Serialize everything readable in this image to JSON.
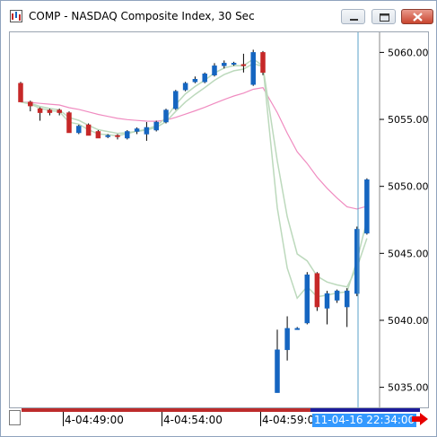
{
  "window": {
    "title": "COMP - NASDAQ Composite Index, 30 Sec",
    "icons": [
      "chart-window-icon",
      "minimize-icon",
      "maximize-icon",
      "close-icon"
    ]
  },
  "chart_data": {
    "type": "candlestick",
    "title": "COMP - NASDAQ Composite Index, 30 Sec",
    "ylim": [
      5033.5,
      5061.5
    ],
    "y_ticks": [
      5060.0,
      5055.0,
      5050.0,
      5045.0,
      5040.0,
      5035.0
    ],
    "y_tick_labels": [
      "5060.00",
      "5055.00",
      "5050.00",
      "5045.00",
      "5040.00",
      "5035.00"
    ],
    "x_tick_labels": [
      "4-04:49:00",
      "4-04:54:00",
      "4-04:59:00"
    ],
    "cursor_label": "11-04-16 22:34:00",
    "colors": {
      "up": "#1565c0",
      "down": "#c62828",
      "pink_ma": "#f08bc0",
      "green_ma": "#bcd9bc",
      "cursor": "#5aa0c8"
    },
    "candles": [
      {
        "o": 5057.7,
        "h": 5057.8,
        "l": 5056.3,
        "c": 5056.3
      },
      {
        "o": 5056.3,
        "h": 5056.4,
        "l": 5055.6,
        "c": 5056.0
      },
      {
        "o": 5055.8,
        "h": 5055.9,
        "l": 5054.9,
        "c": 5055.5
      },
      {
        "o": 5055.7,
        "h": 5055.8,
        "l": 5055.3,
        "c": 5055.5
      },
      {
        "o": 5055.7,
        "h": 5055.8,
        "l": 5055.3,
        "c": 5055.5
      },
      {
        "o": 5055.5,
        "h": 5055.6,
        "l": 5054.0,
        "c": 5054.0
      },
      {
        "o": 5054.0,
        "h": 5054.6,
        "l": 5053.9,
        "c": 5054.5
      },
      {
        "o": 5054.6,
        "h": 5054.7,
        "l": 5053.8,
        "c": 5053.8
      },
      {
        "o": 5054.1,
        "h": 5054.2,
        "l": 5053.6,
        "c": 5053.6
      },
      {
        "o": 5053.8,
        "h": 5053.9,
        "l": 5053.6,
        "c": 5053.8
      },
      {
        "o": 5053.8,
        "h": 5053.9,
        "l": 5053.5,
        "c": 5053.7
      },
      {
        "o": 5053.6,
        "h": 5054.2,
        "l": 5053.5,
        "c": 5054.1
      },
      {
        "o": 5054.1,
        "h": 5054.4,
        "l": 5053.9,
        "c": 5054.3
      },
      {
        "o": 5053.9,
        "h": 5054.8,
        "l": 5053.4,
        "c": 5054.4
      },
      {
        "o": 5054.2,
        "h": 5054.9,
        "l": 5054.1,
        "c": 5054.8
      },
      {
        "o": 5054.8,
        "h": 5055.8,
        "l": 5054.7,
        "c": 5055.7
      },
      {
        "o": 5055.8,
        "h": 5057.2,
        "l": 5055.7,
        "c": 5057.1
      },
      {
        "o": 5057.2,
        "h": 5057.8,
        "l": 5057.1,
        "c": 5057.7
      },
      {
        "o": 5057.8,
        "h": 5058.2,
        "l": 5057.7,
        "c": 5058.0
      },
      {
        "o": 5057.8,
        "h": 5058.5,
        "l": 5057.7,
        "c": 5058.4
      },
      {
        "o": 5058.3,
        "h": 5059.2,
        "l": 5058.2,
        "c": 5059.0
      },
      {
        "o": 5059.0,
        "h": 5059.4,
        "l": 5058.8,
        "c": 5059.2
      },
      {
        "o": 5059.1,
        "h": 5059.3,
        "l": 5059.0,
        "c": 5059.2
      },
      {
        "o": 5059.1,
        "h": 5059.9,
        "l": 5058.5,
        "c": 5059.0
      },
      {
        "o": 5057.6,
        "h": 5060.2,
        "l": 5057.5,
        "c": 5060.0
      },
      {
        "o": 5060.0,
        "h": 5060.1,
        "l": 5058.3,
        "c": 5058.5
      },
      {
        "o": 5034.6,
        "h": 5039.3,
        "l": 5034.6,
        "c": 5037.8
      },
      {
        "o": 5037.8,
        "h": 5040.3,
        "l": 5037.0,
        "c": 5039.4
      },
      {
        "o": 5039.4,
        "h": 5039.5,
        "l": 5039.3,
        "c": 5039.4
      },
      {
        "o": 5039.8,
        "h": 5043.6,
        "l": 5039.7,
        "c": 5043.4
      },
      {
        "o": 5043.5,
        "h": 5043.6,
        "l": 5040.7,
        "c": 5041.0
      },
      {
        "o": 5040.9,
        "h": 5042.2,
        "l": 5039.7,
        "c": 5042.0
      },
      {
        "o": 5041.5,
        "h": 5042.3,
        "l": 5041.3,
        "c": 5042.2
      },
      {
        "o": 5041.0,
        "h": 5042.4,
        "l": 5039.5,
        "c": 5042.2
      },
      {
        "o": 5042.0,
        "h": 5047.0,
        "l": 5041.8,
        "c": 5046.8
      },
      {
        "o": 5046.5,
        "h": 5050.6,
        "l": 5046.4,
        "c": 5050.5
      }
    ]
  }
}
